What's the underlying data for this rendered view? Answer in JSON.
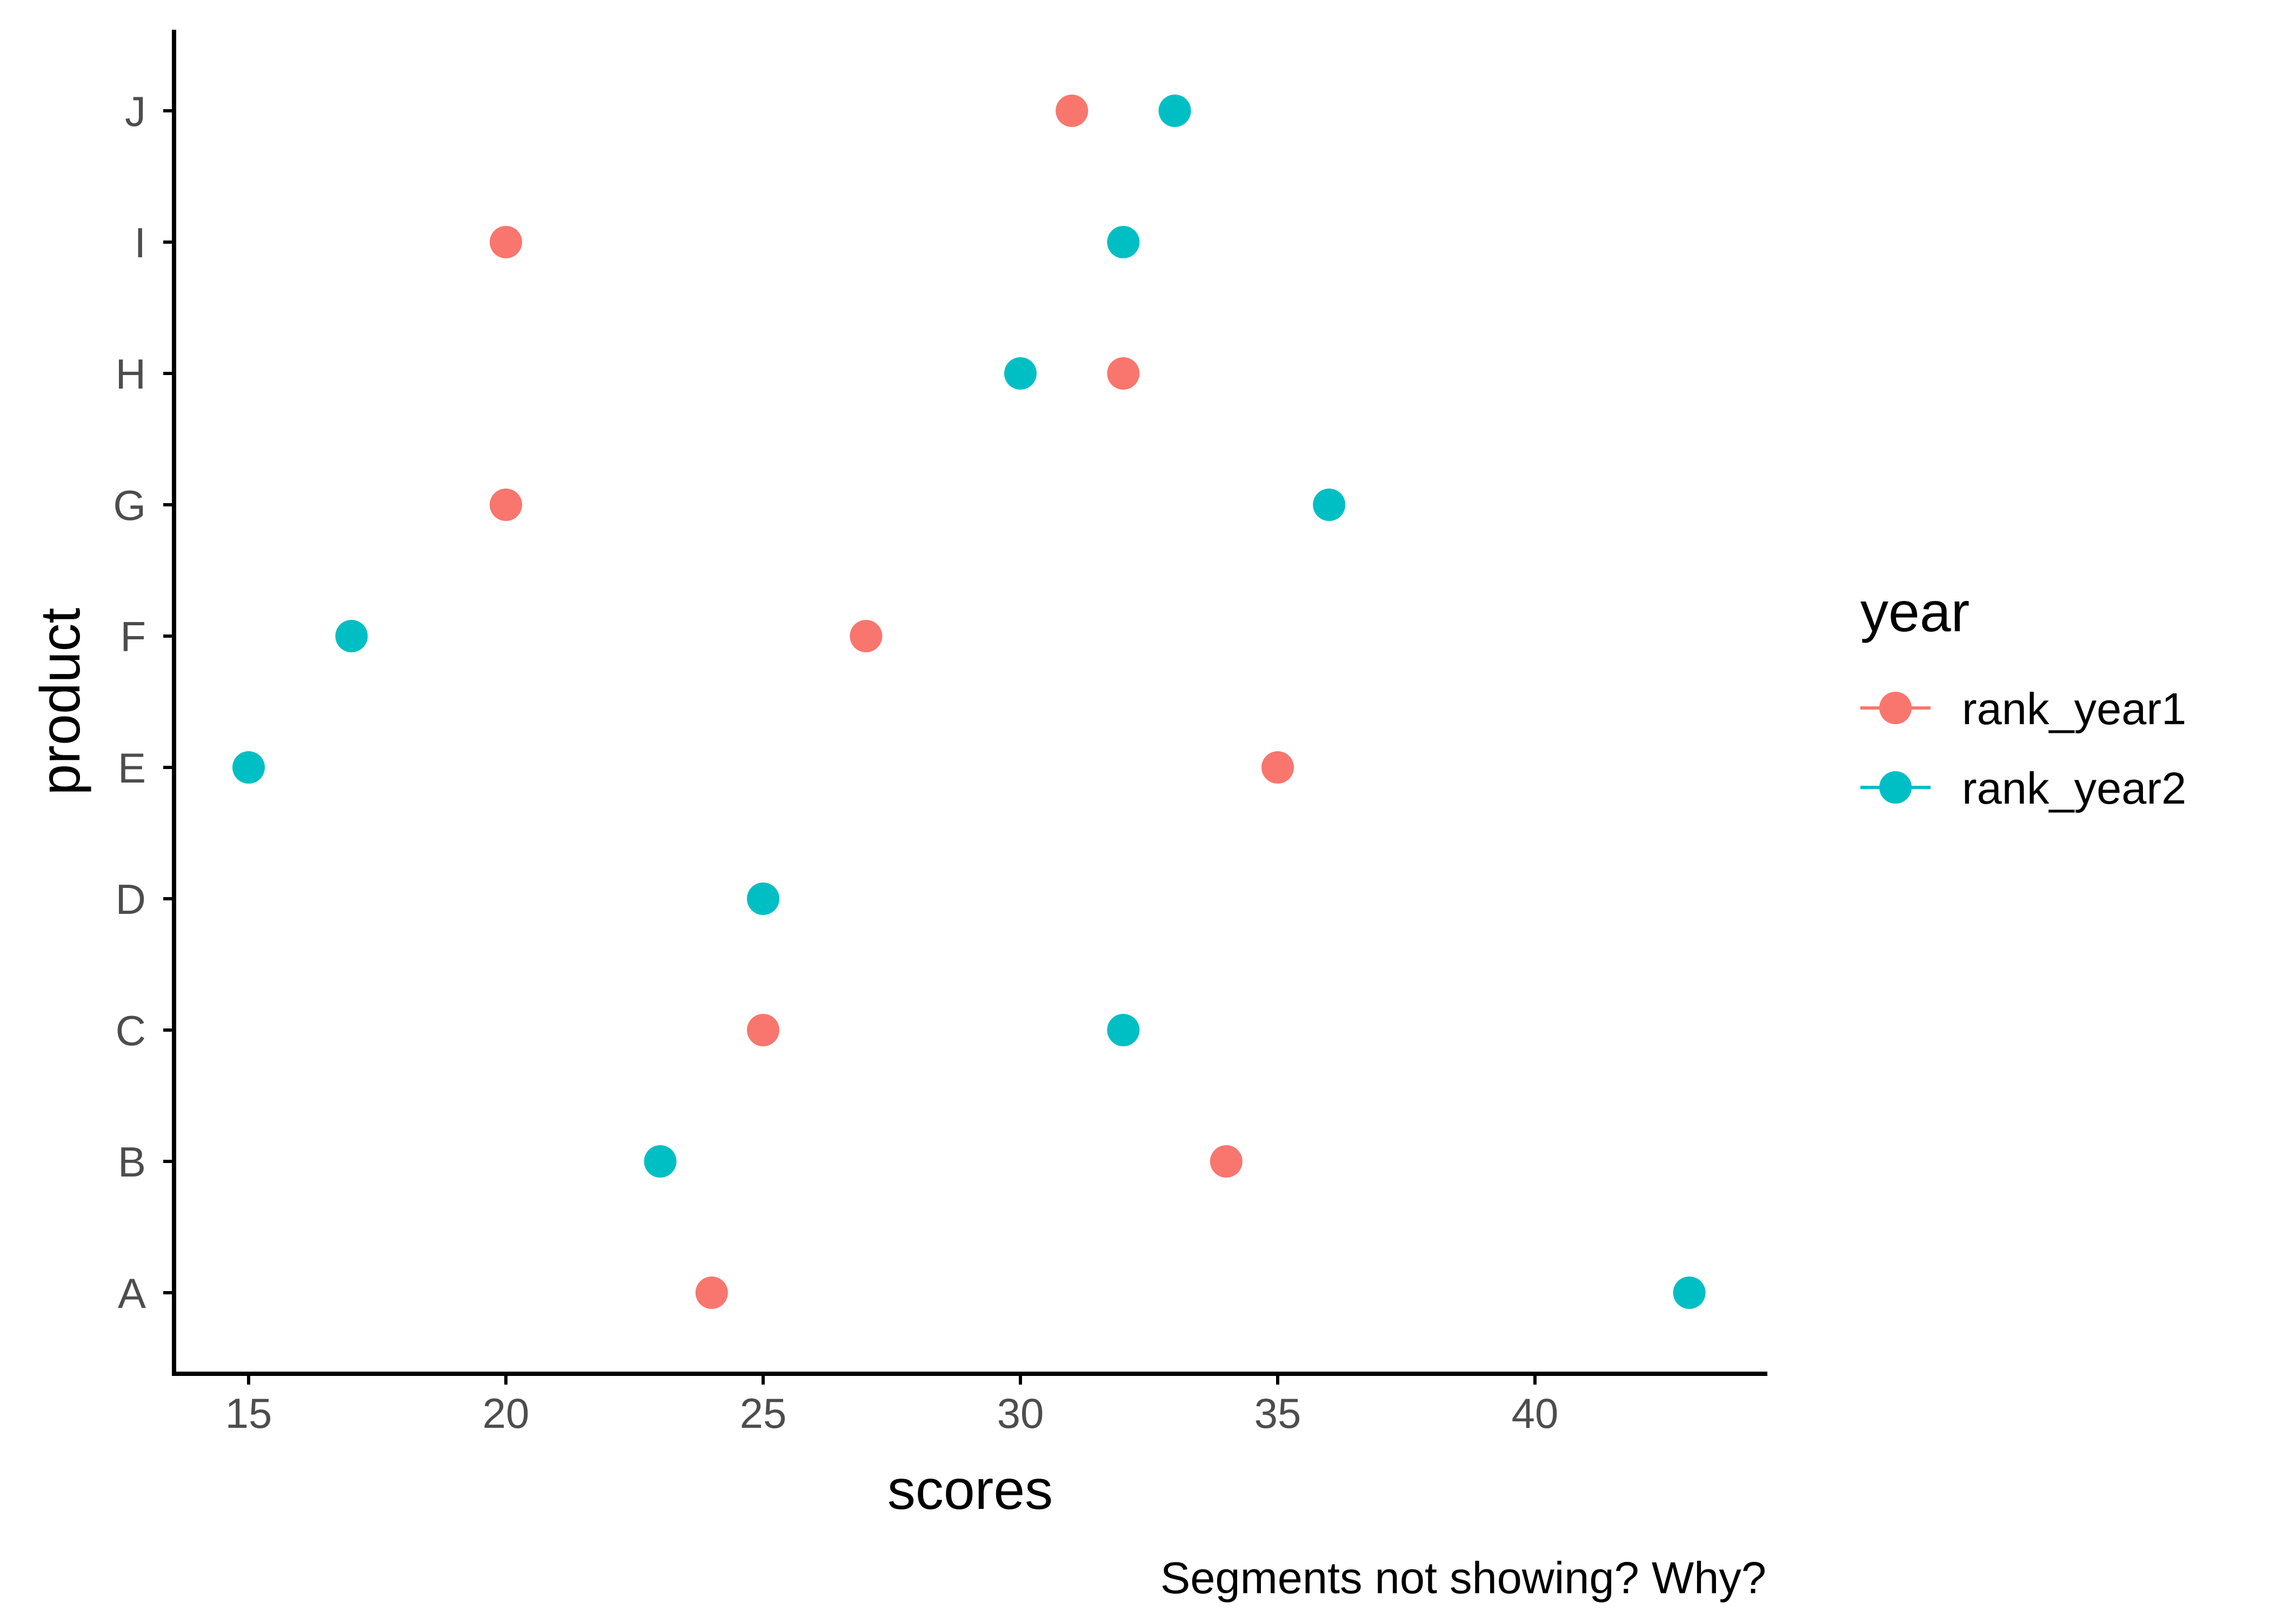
{
  "chart_data": {
    "type": "scatter",
    "xlabel": "scores",
    "ylabel": "product",
    "caption": "Segments not showing? Why?",
    "xlim": [
      13.6,
      44.6
    ],
    "xticks": [
      15,
      20,
      25,
      30,
      35,
      40
    ],
    "categories": [
      "A",
      "B",
      "C",
      "D",
      "E",
      "F",
      "G",
      "H",
      "I",
      "J"
    ],
    "legend": {
      "title": "year",
      "position": "right"
    },
    "grid": false,
    "series": [
      {
        "name": "rank_year1",
        "color": "#F8766D",
        "values": [
          24,
          34,
          25,
          25,
          35,
          27,
          20,
          32,
          20,
          31
        ]
      },
      {
        "name": "rank_year2",
        "color": "#00BFC4",
        "values": [
          43,
          23,
          32,
          25,
          15,
          17,
          36,
          30,
          32,
          33
        ]
      }
    ]
  }
}
